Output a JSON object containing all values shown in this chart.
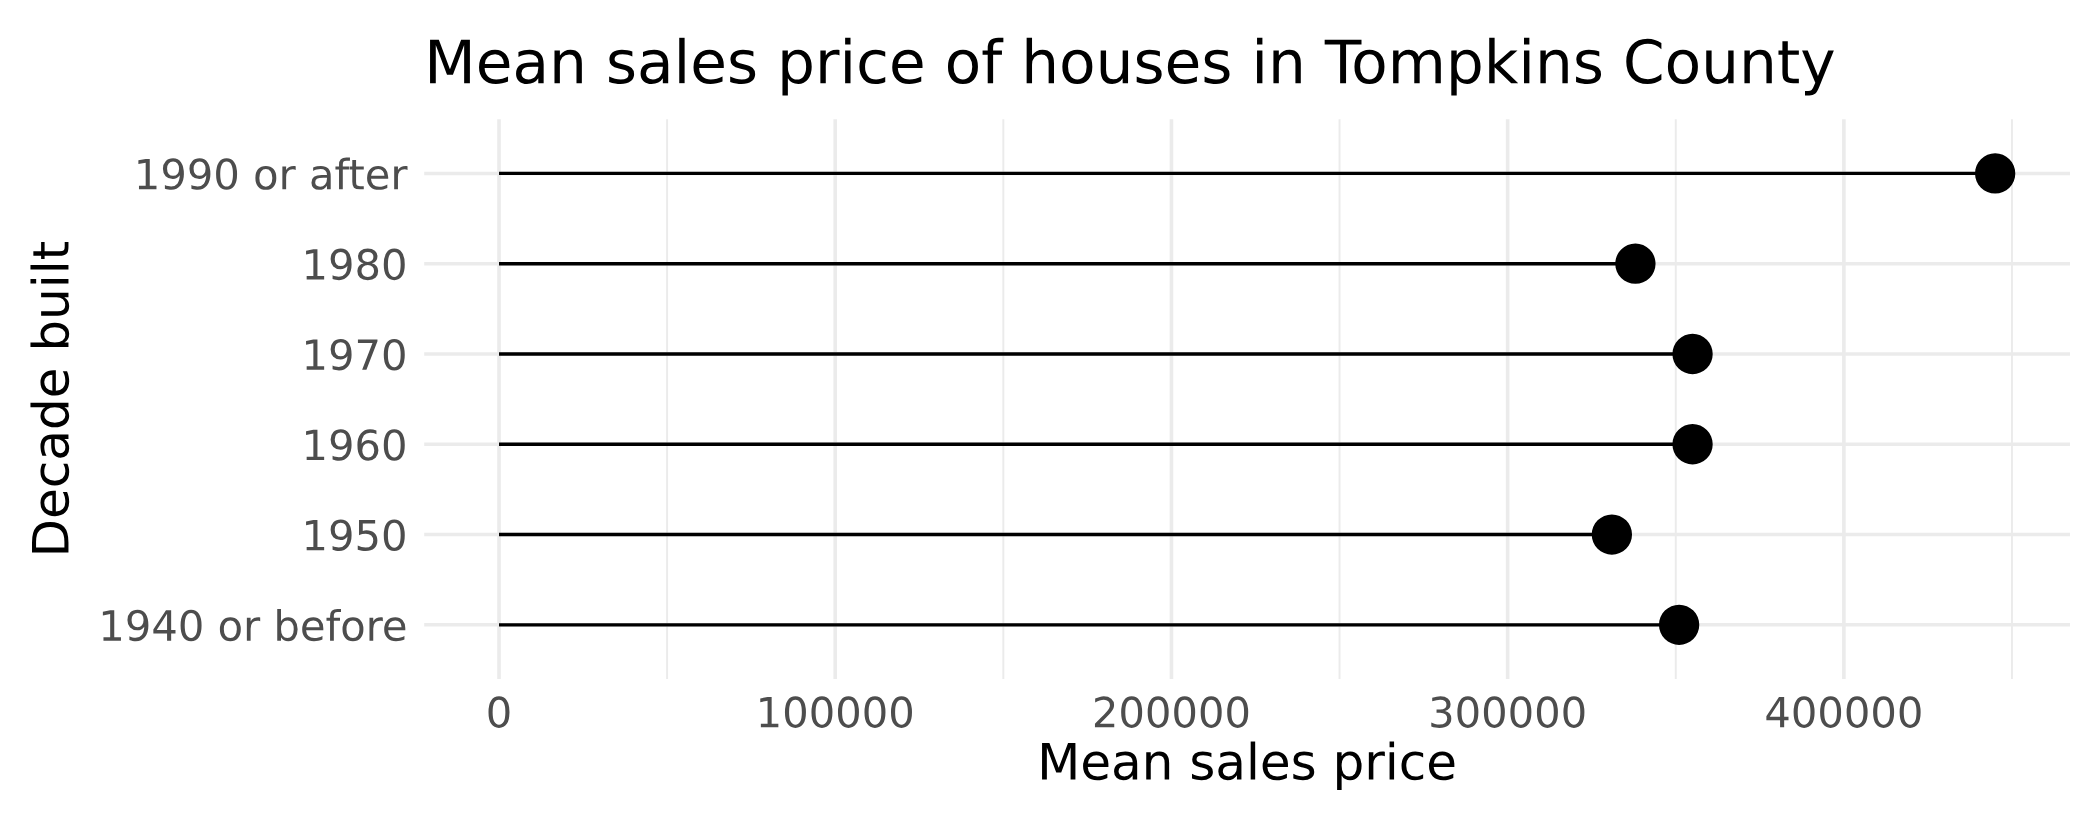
{
  "chart_data": {
    "type": "lollipop",
    "title": "Mean sales price of houses in Tompkins County",
    "xlabel": "Mean sales price",
    "ylabel": "Decade built",
    "orientation": "horizontal",
    "categories": [
      "1990 or after",
      "1980",
      "1970",
      "1960",
      "1950",
      "1940 or before"
    ],
    "values": [
      445000,
      338000,
      355000,
      355000,
      331000,
      351000
    ],
    "color": "#000000",
    "marker": "circle",
    "xlim": [
      -22250,
      467250
    ],
    "xticks": [
      0,
      {
        "value": 50000,
        "label": null
      },
      100000,
      {
        "value": 150000,
        "label": null
      },
      200000,
      {
        "value": 250000,
        "label": null
      },
      300000,
      {
        "value": 350000,
        "label": null
      },
      400000,
      {
        "value": 450000,
        "label": null
      }
    ],
    "grid": true
  }
}
